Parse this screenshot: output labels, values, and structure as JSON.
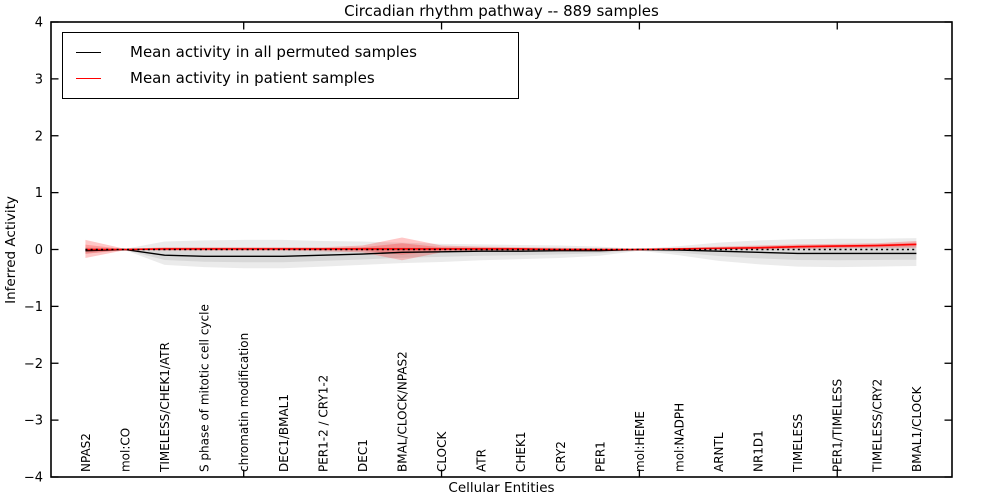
{
  "title": "Circadian rhythm pathway -- 889 samples",
  "axes": {
    "ylabel": "Inferred Activity",
    "xlabel": "Cellular Entities"
  },
  "chart_data": {
    "type": "line",
    "title": "Circadian rhythm pathway -- 889 samples",
    "xlabel": "Cellular Entities",
    "ylabel": "Inferred Activity",
    "ylim": [
      -4,
      4
    ],
    "xlim": [
      0.13,
      22.9
    ],
    "grid": false,
    "y_ticks": [
      -4,
      -3,
      -2,
      -1,
      0,
      1,
      2,
      3,
      4
    ],
    "y_tick_labels": [
      "−4",
      "−3",
      "−2",
      "−1",
      "0",
      "1",
      "2",
      "3",
      "4"
    ],
    "x_major_ticks": [
      5,
      10,
      15,
      20
    ],
    "zero_reference_line": {
      "y": 0,
      "style": "dashed",
      "color": "#000000"
    },
    "categories": [
      "NPAS2",
      "mol:CO",
      "TIMELESS/CHEK1/ATR",
      "S phase of mitotic cell cycle",
      "chromatin modification",
      "DEC1/BMAL1",
      "PER1-2 / CRY1-2",
      "DEC1",
      "BMAL/CLOCK/NPAS2",
      "CLOCK",
      "ATR",
      "CHEK1",
      "CRY2",
      "PER1",
      "mol:HEME",
      "mol:NADPH",
      "ARNTL",
      "NR1D1",
      "TIMELESS",
      "PER1/TIMELESS",
      "TIMELESS/CRY2",
      "BMAL1/CLOCK"
    ],
    "legend": {
      "position": "upper left",
      "entries": [
        {
          "label": "Mean activity in all permuted samples",
          "color": "#000000"
        },
        {
          "label": "Mean activity in patient samples",
          "color": "#ff0000"
        }
      ]
    },
    "series": [
      {
        "name": "Mean activity in all permuted samples",
        "color": "#000000",
        "line_width": 1.4,
        "band_color": "#000000",
        "band_opacity": 0.08,
        "values": [
          -0.02,
          0.0,
          -0.1,
          -0.12,
          -0.12,
          -0.12,
          -0.1,
          -0.08,
          -0.05,
          -0.04,
          -0.03,
          -0.03,
          -0.02,
          -0.02,
          0.0,
          -0.01,
          -0.03,
          -0.05,
          -0.07,
          -0.07,
          -0.07,
          -0.07
        ],
        "band_outer_upper": [
          0.04,
          0.01,
          0.14,
          0.16,
          0.17,
          0.17,
          0.15,
          0.14,
          0.12,
          0.1,
          0.09,
          0.08,
          0.07,
          0.05,
          0.01,
          0.06,
          0.12,
          0.16,
          0.18,
          0.19,
          0.19,
          0.2
        ],
        "band_outer_lower": [
          -0.08,
          -0.01,
          -0.27,
          -0.31,
          -0.33,
          -0.33,
          -0.3,
          -0.27,
          -0.24,
          -0.22,
          -0.19,
          -0.17,
          -0.15,
          -0.11,
          -0.02,
          -0.1,
          -0.2,
          -0.26,
          -0.3,
          -0.31,
          -0.3,
          -0.29
        ],
        "band_inner_upper": [
          0.01,
          0.005,
          0.02,
          0.02,
          0.025,
          0.025,
          0.025,
          0.03,
          0.035,
          0.03,
          0.03,
          0.025,
          0.025,
          0.015,
          0.005,
          0.025,
          0.045,
          0.055,
          0.055,
          0.06,
          0.06,
          0.065
        ],
        "band_inner_lower": [
          -0.05,
          -0.005,
          -0.185,
          -0.215,
          -0.225,
          -0.225,
          -0.2,
          -0.175,
          -0.145,
          -0.13,
          -0.11,
          -0.1,
          -0.085,
          -0.065,
          -0.01,
          -0.055,
          -0.115,
          -0.155,
          -0.185,
          -0.19,
          -0.185,
          -0.18
        ]
      },
      {
        "name": "Mean activity in patient samples",
        "color": "#ff0000",
        "line_width": 1.6,
        "band_color": "#ff0000",
        "band_opacity": 0.22,
        "values": [
          0.0,
          0.0,
          0.01,
          0.01,
          0.01,
          0.01,
          0.01,
          0.01,
          0.01,
          0.01,
          0.01,
          0.01,
          0.0,
          0.0,
          0.0,
          0.01,
          0.02,
          0.03,
          0.05,
          0.06,
          0.07,
          0.09
        ],
        "band_outer_upper": [
          0.17,
          0.01,
          0.04,
          0.04,
          0.04,
          0.04,
          0.04,
          0.07,
          0.21,
          0.07,
          0.05,
          0.04,
          0.03,
          0.02,
          0.01,
          0.03,
          0.05,
          0.07,
          0.09,
          0.1,
          0.11,
          0.15
        ],
        "band_outer_lower": [
          -0.15,
          -0.01,
          -0.02,
          -0.02,
          -0.02,
          -0.02,
          -0.03,
          -0.05,
          -0.19,
          -0.05,
          -0.03,
          -0.02,
          -0.02,
          -0.02,
          -0.01,
          -0.01,
          0.0,
          0.0,
          0.01,
          0.02,
          0.03,
          0.03
        ],
        "band_inner_upper": [
          0.085,
          0.005,
          0.025,
          0.025,
          0.025,
          0.025,
          0.025,
          0.04,
          0.11,
          0.04,
          0.03,
          0.025,
          0.015,
          0.01,
          0.005,
          0.02,
          0.035,
          0.05,
          0.07,
          0.08,
          0.09,
          0.12
        ],
        "band_inner_lower": [
          -0.075,
          -0.005,
          -0.005,
          -0.005,
          -0.005,
          -0.005,
          -0.01,
          -0.02,
          -0.09,
          -0.02,
          -0.01,
          -0.005,
          -0.01,
          -0.01,
          -0.005,
          0.0,
          0.01,
          0.015,
          0.03,
          0.04,
          0.05,
          0.06
        ]
      }
    ]
  }
}
